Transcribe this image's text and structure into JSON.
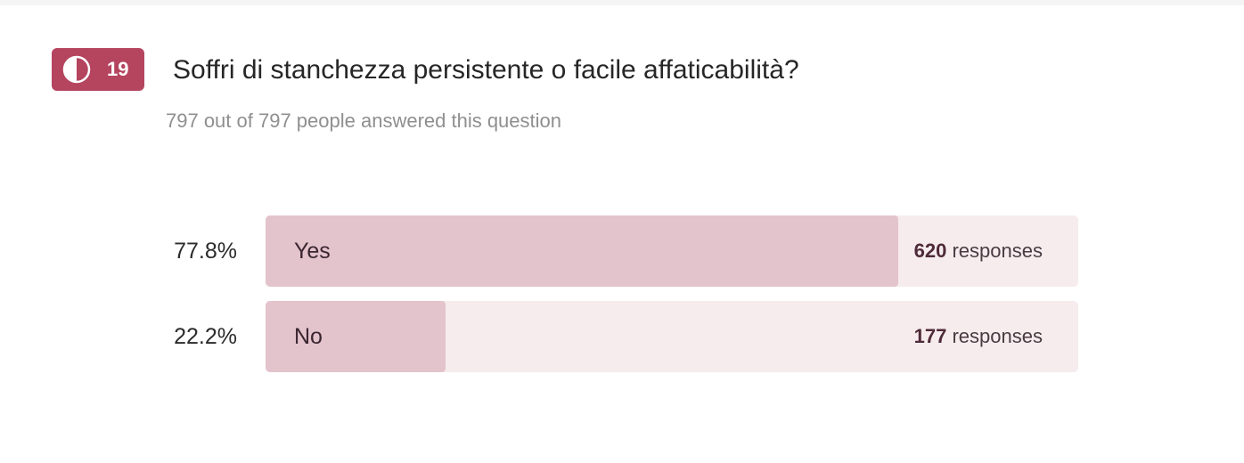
{
  "question": {
    "number": "19",
    "icon": "half-circle-icon",
    "title": "Soffri di stanchezza persistente o facile affaticabilità?",
    "answered_text": "797 out of 797 people answered this question"
  },
  "colors": {
    "badge": "#b5445e",
    "bar_fill": "#e3c3cc",
    "bar_track": "#f6ecee"
  },
  "options": [
    {
      "label": "Yes",
      "percent": "77.8%",
      "fraction": 0.778,
      "count": "620",
      "responses_label": "responses"
    },
    {
      "label": "No",
      "percent": "22.2%",
      "fraction": 0.222,
      "count": "177",
      "responses_label": "responses"
    }
  ]
}
